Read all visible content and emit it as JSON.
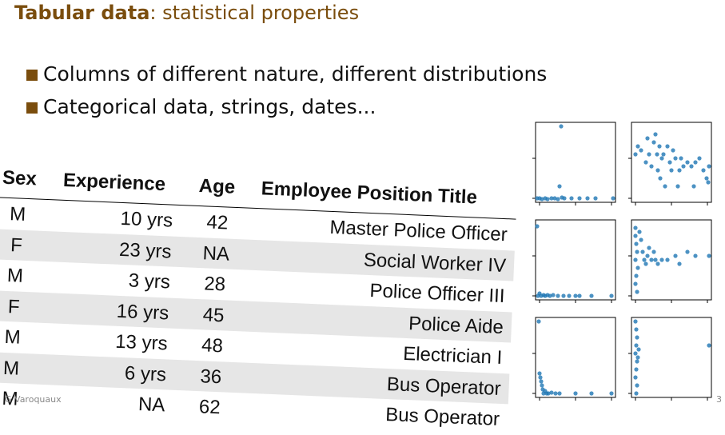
{
  "slide": {
    "title_bold": "Tabular data",
    "title_rest": ": statistical properties",
    "bullets": [
      "Columns of different nature, different distributions",
      "Categorical data, strings, dates..."
    ],
    "author": "G Varoquaux",
    "page": "3"
  },
  "table": {
    "headers": [
      "Sex",
      "Experience",
      "Age",
      "Employee Position Title"
    ],
    "rows": [
      [
        "M",
        "10 yrs",
        "42",
        "Master Police Officer"
      ],
      [
        "F",
        "23 yrs",
        "NA",
        "Social Worker IV"
      ],
      [
        "M",
        "3 yrs",
        "28",
        "Police Officer III"
      ],
      [
        "F",
        "16 yrs",
        "45",
        "Police Aide"
      ],
      [
        "M",
        "13 yrs",
        "48",
        "Electrician I"
      ],
      [
        "M",
        "6 yrs",
        "36",
        "Bus Operator"
      ],
      [
        "M",
        "NA",
        "62",
        "Bus Operator"
      ]
    ]
  },
  "colors": {
    "accent": "#7a4d0d",
    "points": "#1f77b4",
    "row_alt": "#e6e6e6"
  },
  "chart_data": {
    "type": "scatter",
    "grid": "3x2 pair plot",
    "panels": [
      {
        "points": [
          [
            0.02,
            0.05
          ],
          [
            0.05,
            0.05
          ],
          [
            0.08,
            0.04
          ],
          [
            0.12,
            0.05
          ],
          [
            0.15,
            0.04
          ],
          [
            0.2,
            0.05
          ],
          [
            0.24,
            0.05
          ],
          [
            0.28,
            0.04
          ],
          [
            0.3,
            0.2
          ],
          [
            0.32,
            0.95
          ],
          [
            0.33,
            0.06
          ],
          [
            0.36,
            0.05
          ],
          [
            0.45,
            0.05
          ],
          [
            0.55,
            0.05
          ],
          [
            0.65,
            0.05
          ],
          [
            0.75,
            0.05
          ],
          [
            0.97,
            0.05
          ]
        ]
      },
      {
        "points": [
          [
            0.05,
            0.6
          ],
          [
            0.08,
            0.7
          ],
          [
            0.12,
            0.65
          ],
          [
            0.18,
            0.5
          ],
          [
            0.2,
            0.8
          ],
          [
            0.22,
            0.6
          ],
          [
            0.25,
            0.45
          ],
          [
            0.28,
            0.75
          ],
          [
            0.3,
            0.85
          ],
          [
            0.32,
            0.6
          ],
          [
            0.33,
            0.4
          ],
          [
            0.35,
            0.7
          ],
          [
            0.36,
            0.3
          ],
          [
            0.38,
            0.55
          ],
          [
            0.4,
            0.6
          ],
          [
            0.42,
            0.2
          ],
          [
            0.45,
            0.7
          ],
          [
            0.48,
            0.5
          ],
          [
            0.5,
            0.4
          ],
          [
            0.52,
            0.65
          ],
          [
            0.55,
            0.55
          ],
          [
            0.58,
            0.2
          ],
          [
            0.6,
            0.4
          ],
          [
            0.62,
            0.55
          ],
          [
            0.65,
            0.45
          ],
          [
            0.7,
            0.5
          ],
          [
            0.75,
            0.45
          ],
          [
            0.78,
            0.2
          ],
          [
            0.8,
            0.5
          ],
          [
            0.85,
            0.55
          ],
          [
            0.9,
            0.4
          ],
          [
            0.94,
            0.3
          ],
          [
            0.96,
            0.25
          ],
          [
            0.97,
            0.45
          ]
        ]
      },
      {
        "points": [
          [
            0.02,
            0.92
          ],
          [
            0.03,
            0.05
          ],
          [
            0.05,
            0.08
          ],
          [
            0.07,
            0.05
          ],
          [
            0.1,
            0.06
          ],
          [
            0.12,
            0.05
          ],
          [
            0.15,
            0.06
          ],
          [
            0.18,
            0.05
          ],
          [
            0.22,
            0.06
          ],
          [
            0.28,
            0.05
          ],
          [
            0.35,
            0.05
          ],
          [
            0.42,
            0.05
          ],
          [
            0.5,
            0.05
          ],
          [
            0.55,
            0.05
          ],
          [
            0.7,
            0.05
          ],
          [
            0.95,
            0.05
          ]
        ]
      },
      {
        "points": [
          [
            0.05,
            0.9
          ],
          [
            0.05,
            0.8
          ],
          [
            0.06,
            0.7
          ],
          [
            0.07,
            0.6
          ],
          [
            0.05,
            0.5
          ],
          [
            0.08,
            0.4
          ],
          [
            0.06,
            0.3
          ],
          [
            0.05,
            0.2
          ],
          [
            0.07,
            0.1
          ],
          [
            0.1,
            0.85
          ],
          [
            0.12,
            0.75
          ],
          [
            0.14,
            0.6
          ],
          [
            0.16,
            0.5
          ],
          [
            0.18,
            0.45
          ],
          [
            0.2,
            0.55
          ],
          [
            0.22,
            0.65
          ],
          [
            0.25,
            0.5
          ],
          [
            0.28,
            0.6
          ],
          [
            0.3,
            0.5
          ],
          [
            0.33,
            0.45
          ],
          [
            0.38,
            0.5
          ],
          [
            0.45,
            0.5
          ],
          [
            0.55,
            0.55
          ],
          [
            0.6,
            0.45
          ],
          [
            0.7,
            0.6
          ],
          [
            0.8,
            0.55
          ],
          [
            0.97,
            0.55
          ]
        ]
      },
      {
        "points": [
          [
            0.04,
            0.95
          ],
          [
            0.05,
            0.3
          ],
          [
            0.06,
            0.25
          ],
          [
            0.07,
            0.2
          ],
          [
            0.08,
            0.15
          ],
          [
            0.09,
            0.1
          ],
          [
            0.1,
            0.05
          ],
          [
            0.12,
            0.08
          ],
          [
            0.14,
            0.05
          ],
          [
            0.16,
            0.05
          ],
          [
            0.2,
            0.06
          ],
          [
            0.25,
            0.05
          ],
          [
            0.3,
            0.05
          ],
          [
            0.5,
            0.05
          ],
          [
            0.7,
            0.05
          ],
          [
            0.95,
            0.05
          ]
        ]
      },
      {
        "points": [
          [
            0.05,
            0.95
          ],
          [
            0.06,
            0.85
          ],
          [
            0.07,
            0.75
          ],
          [
            0.06,
            0.65
          ],
          [
            0.05,
            0.55
          ],
          [
            0.07,
            0.45
          ],
          [
            0.06,
            0.35
          ],
          [
            0.05,
            0.25
          ],
          [
            0.07,
            0.15
          ],
          [
            0.06,
            0.05
          ],
          [
            0.08,
            0.5
          ],
          [
            0.09,
            0.6
          ],
          [
            0.97,
            0.65
          ]
        ]
      }
    ]
  }
}
